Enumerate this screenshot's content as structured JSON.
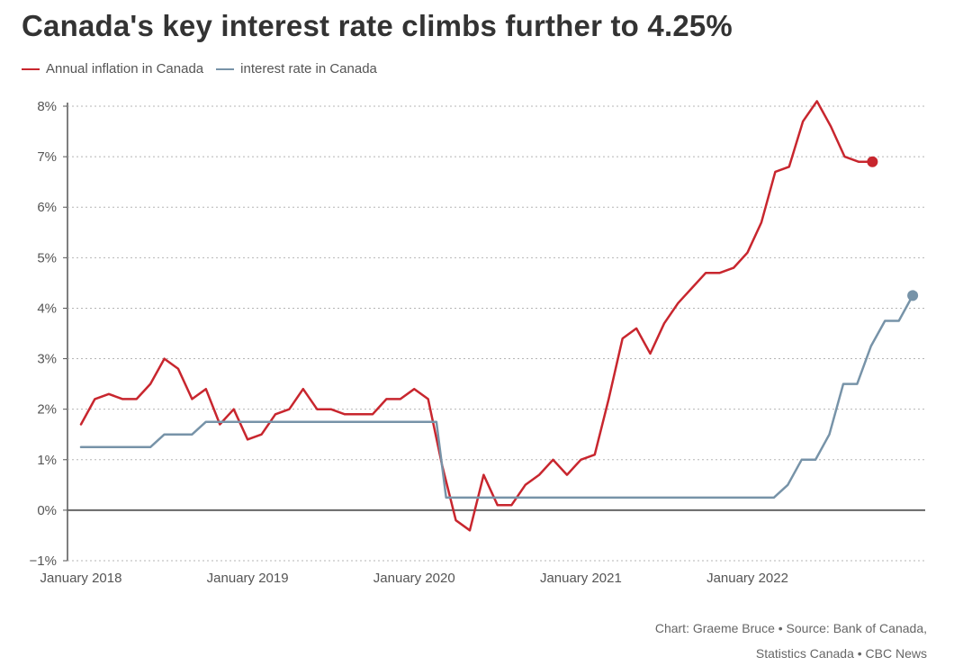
{
  "header": {
    "title": "Canada's key interest rate climbs further to 4.25%"
  },
  "legend": {
    "items": [
      {
        "label": "Annual inflation in Canada",
        "color": "#c8262e"
      },
      {
        "label": "interest rate in Canada",
        "color": "#7793a8"
      }
    ]
  },
  "footer": {
    "source_line1": "Chart: Graeme Bruce • Source: Bank of Canada,",
    "source_line2": "Statistics Canada • CBC News"
  },
  "chart_data": {
    "type": "line",
    "title": "Canada's key interest rate climbs further to 4.25%",
    "xlabel": "",
    "ylabel": "",
    "ylim": [
      -1,
      8.2
    ],
    "yticks": [
      -1,
      0,
      1,
      2,
      3,
      4,
      5,
      6,
      7,
      8
    ],
    "ytick_labels": [
      "−1%",
      "0%",
      "1%",
      "2%",
      "3%",
      "4%",
      "5%",
      "6%",
      "7%",
      "8%"
    ],
    "x_range": [
      0,
      60.8
    ],
    "xticks": [
      0,
      12,
      24,
      36,
      48
    ],
    "xtick_labels": [
      "January 2018",
      "January 2019",
      "January 2020",
      "January 2021",
      "January 2022"
    ],
    "series": [
      {
        "name": "Annual inflation in Canada",
        "color": "#c8262e",
        "values": [
          1.7,
          2.2,
          2.3,
          2.2,
          2.2,
          2.5,
          3.0,
          2.8,
          2.2,
          2.4,
          1.7,
          2.0,
          1.4,
          1.5,
          1.9,
          2.0,
          2.4,
          2.0,
          2.0,
          1.9,
          1.9,
          1.9,
          2.2,
          2.2,
          2.4,
          2.2,
          0.9,
          -0.2,
          -0.4,
          0.7,
          0.1,
          0.1,
          0.5,
          0.7,
          1.0,
          0.7,
          1.0,
          1.1,
          2.2,
          3.4,
          3.6,
          3.1,
          3.7,
          4.1,
          4.4,
          4.7,
          4.7,
          4.8,
          5.1,
          5.7,
          6.7,
          6.8,
          7.7,
          8.1,
          7.6,
          7.0,
          6.9,
          6.9
        ],
        "end_marker": true
      },
      {
        "name": "interest rate in Canada",
        "color": "#7793a8",
        "points": [
          [
            0,
            1.25
          ],
          [
            5,
            1.25
          ],
          [
            6,
            1.5
          ],
          [
            8,
            1.5
          ],
          [
            9,
            1.75
          ],
          [
            25.6,
            1.75
          ],
          [
            26.3,
            0.25
          ],
          [
            49.9,
            0.25
          ],
          [
            50.9,
            0.5
          ],
          [
            51.9,
            1.0
          ],
          [
            52.9,
            1.0
          ],
          [
            53.9,
            1.5
          ],
          [
            54.9,
            2.5
          ],
          [
            55.9,
            2.5
          ],
          [
            56.9,
            3.25
          ],
          [
            57.9,
            3.75
          ],
          [
            58.9,
            3.75
          ],
          [
            59.9,
            4.25
          ]
        ],
        "end_marker": true
      }
    ]
  }
}
